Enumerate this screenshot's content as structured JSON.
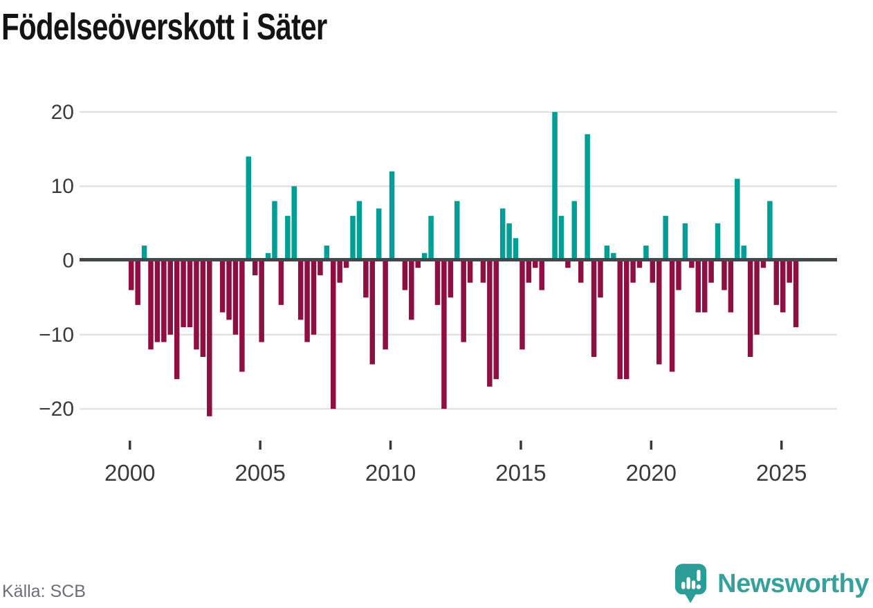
{
  "title": "Födelseöverskott i Säter",
  "source": {
    "label": "Källa: SCB"
  },
  "branding": {
    "name": "Newsworthy",
    "icon": "newsworthy-speech-bubble-bar-chart-icon"
  },
  "colors": {
    "positive_bar": "#009e96",
    "negative_bar": "#8e0f42",
    "zero_line": "#43464b",
    "gridline": "#e2e2e2",
    "axis_text": "#3a3a3a",
    "title_text": "#141414",
    "source_text": "#6d6d78",
    "brand_teal": "#38a09b"
  },
  "chart_data": {
    "type": "bar",
    "title": "Födelseöverskott i Säter",
    "frequency": "quarterly",
    "start": "2000 Q1",
    "end": "2025 Q3",
    "grid": "horizontal-only",
    "legend": "none",
    "ylim": [
      -22,
      22
    ],
    "y_ticks": [
      20,
      10,
      0,
      -10,
      -20
    ],
    "y_tick_labels": [
      "20",
      "10",
      "0",
      "−10",
      "−20"
    ],
    "x_tick_labels": [
      "2000",
      "2005",
      "2010",
      "2015",
      "2020",
      "2025"
    ],
    "series_color_rule": "teal when value > 0, dark red when value < 0",
    "years": [
      {
        "year": 2000,
        "quarters": [
          -4,
          -6,
          2,
          -12
        ]
      },
      {
        "year": 2001,
        "quarters": [
          -11,
          -11,
          -10,
          -16
        ]
      },
      {
        "year": 2002,
        "quarters": [
          -9,
          -9,
          -12,
          -13
        ]
      },
      {
        "year": 2003,
        "quarters": [
          -21,
          0,
          -7,
          -8
        ]
      },
      {
        "year": 2004,
        "quarters": [
          -10,
          -15,
          14,
          -2
        ]
      },
      {
        "year": 2005,
        "quarters": [
          -11,
          1,
          8,
          -6
        ]
      },
      {
        "year": 2006,
        "quarters": [
          6,
          10,
          -8,
          -11
        ]
      },
      {
        "year": 2007,
        "quarters": [
          -10,
          -2,
          2,
          -20
        ]
      },
      {
        "year": 2008,
        "quarters": [
          -3,
          -1,
          6,
          8
        ]
      },
      {
        "year": 2009,
        "quarters": [
          -5,
          -14,
          7,
          -12
        ]
      },
      {
        "year": 2010,
        "quarters": [
          12,
          0,
          -4,
          -8
        ]
      },
      {
        "year": 2011,
        "quarters": [
          -1,
          1,
          6,
          -6
        ]
      },
      {
        "year": 2012,
        "quarters": [
          -20,
          -5,
          8,
          -11
        ]
      },
      {
        "year": 2013,
        "quarters": [
          -3,
          0,
          -3,
          -17
        ]
      },
      {
        "year": 2014,
        "quarters": [
          -16,
          7,
          5,
          3
        ]
      },
      {
        "year": 2015,
        "quarters": [
          -12,
          -3,
          -1,
          -4
        ]
      },
      {
        "year": 2016,
        "quarters": [
          0,
          20,
          6,
          -1
        ]
      },
      {
        "year": 2017,
        "quarters": [
          8,
          -3,
          17,
          -13
        ]
      },
      {
        "year": 2018,
        "quarters": [
          -5,
          2,
          1,
          -16
        ]
      },
      {
        "year": 2019,
        "quarters": [
          -16,
          -3,
          -1,
          2
        ]
      },
      {
        "year": 2020,
        "quarters": [
          -3,
          -14,
          6,
          -15
        ]
      },
      {
        "year": 2021,
        "quarters": [
          -4,
          5,
          -1,
          -7
        ]
      },
      {
        "year": 2022,
        "quarters": [
          -7,
          -3,
          5,
          -4
        ]
      },
      {
        "year": 2023,
        "quarters": [
          -7,
          11,
          2,
          -13
        ]
      },
      {
        "year": 2024,
        "quarters": [
          -10,
          -1,
          8,
          -6
        ]
      },
      {
        "year": 2025,
        "quarters": [
          -7,
          -3,
          -9
        ]
      }
    ]
  }
}
